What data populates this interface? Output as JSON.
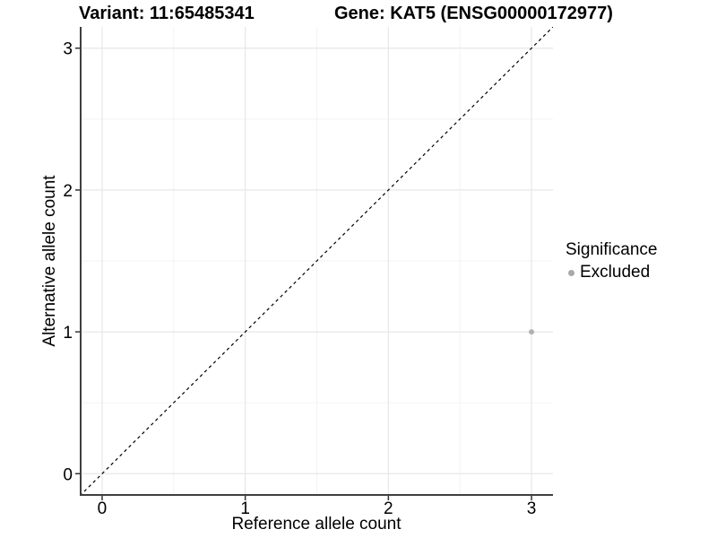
{
  "chart_data": {
    "type": "scatter",
    "title_left": "Variant: 11:65485341",
    "title_right": "Gene: KAT5 (ENSG00000172977)",
    "xlabel": "Reference allele count",
    "ylabel": "Alternative allele count",
    "xlim": [
      -0.15,
      3.15
    ],
    "ylim": [
      -0.15,
      3.15
    ],
    "x_ticks": [
      0,
      1,
      2,
      3
    ],
    "y_ticks": [
      0,
      1,
      2,
      3
    ],
    "x_minor_ticks": [
      0.5,
      1.5,
      2.5
    ],
    "y_minor_ticks": [
      0.5,
      1.5,
      2.5
    ],
    "grid": true,
    "points": [
      {
        "x": 3,
        "y": 1,
        "significance": "Excluded"
      }
    ],
    "reference_line": {
      "type": "identity",
      "slope": 1,
      "intercept": 0,
      "style": "dashed"
    },
    "legend": {
      "title": "Significance",
      "position": "right",
      "items": [
        {
          "label": "Excluded",
          "marker": "circle",
          "color": "#a9a9a9"
        }
      ]
    },
    "colors": {
      "point": "#b2b2b2",
      "grid_major": "#e7e7e7",
      "grid_minor": "#f3f3f3",
      "axis_line": "#3f3f3f",
      "tick": "#333333",
      "reference_line": "#000000",
      "background": "#ffffff"
    }
  }
}
